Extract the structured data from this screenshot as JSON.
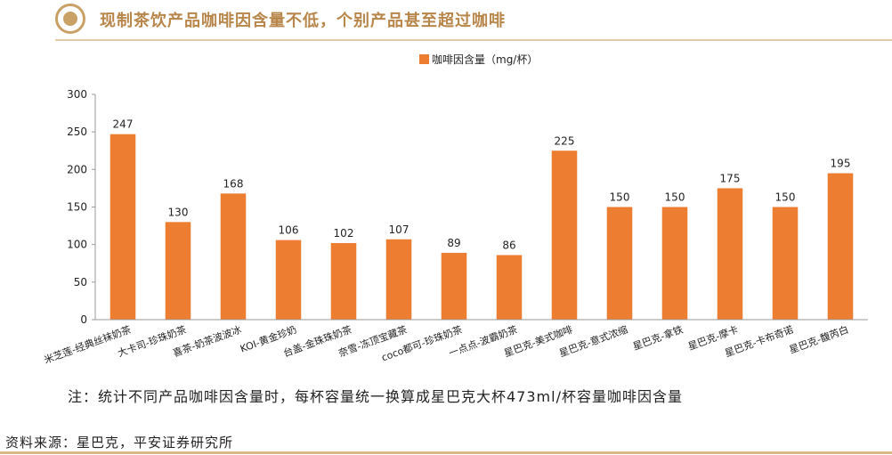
{
  "header": {
    "title": "现制茶饮产品咖啡因含量不低，个别产品甚至超过咖啡"
  },
  "note": "注：统计不同产品咖啡因含量时，每杯容量统一换算成星巴克大杯473ml/杯容量咖啡因含量",
  "source": "资料来源：星巴克，平安证券研究所",
  "colors": {
    "bar": "#ED7D31",
    "title": "#B8864A",
    "logo": "#C9A066"
  },
  "chart_data": {
    "type": "bar",
    "title": "",
    "xlabel": "",
    "ylabel": "",
    "ylim": [
      0,
      300
    ],
    "yticks": [
      0,
      50,
      100,
      150,
      200,
      250,
      300
    ],
    "grid": false,
    "legend": "top-center",
    "categories": [
      "米芝莲-经典丝袜奶茶",
      "大卡司-珍珠奶茶",
      "喜茶-奶茶波波冰",
      "KOI-黄金珍奶",
      "台盖-金珠珠奶茶",
      "奈雪-冻顶宝藏茶",
      "coco都可-珍珠奶茶",
      "一点点-波霸奶茶",
      "星巴克-美式咖啡",
      "星巴克-意式浓缩",
      "星巴克-拿铁",
      "星巴克-摩卡",
      "星巴克-卡布奇诺",
      "星巴克-馥芮白"
    ],
    "series": [
      {
        "name": "咖啡因含量（mg/杯）",
        "values": [
          247,
          130,
          168,
          106,
          102,
          107,
          89,
          86,
          225,
          150,
          150,
          175,
          150,
          195
        ]
      }
    ]
  }
}
